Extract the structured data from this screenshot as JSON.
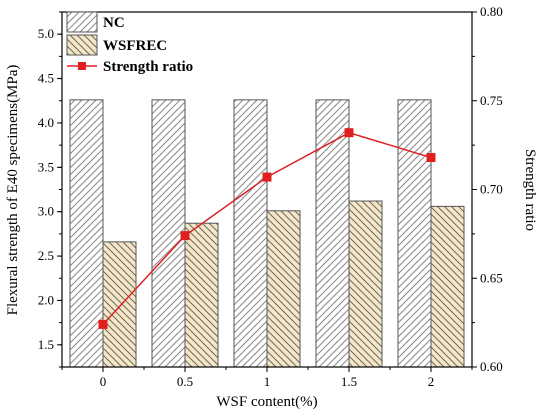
{
  "chart_data": {
    "type": "bar",
    "categories": [
      "0",
      "0.5",
      "1",
      "1.5",
      "2"
    ],
    "xlabel": "WSF content(%)",
    "ylabel": "Flexural strength of E40 specimens(MPa)",
    "y2label": "Strength ratio",
    "ylim": [
      1.25,
      5.25
    ],
    "y2lim": [
      0.6,
      0.8
    ],
    "yticks": [
      "1.5",
      "2.0",
      "2.5",
      "3.0",
      "3.5",
      "4.0",
      "4.5",
      "5.0"
    ],
    "y2ticks": [
      "0.60",
      "0.65",
      "0.70",
      "0.75",
      "0.80"
    ],
    "legend_position": "top-left",
    "series": [
      {
        "name": "NC",
        "type": "bar",
        "axis": "left",
        "values": [
          4.26,
          4.26,
          4.26,
          4.26,
          4.26
        ],
        "fill": "#ffffff",
        "hatch": "forward",
        "stroke": "#555555"
      },
      {
        "name": "WSFREC",
        "type": "bar",
        "axis": "left",
        "values": [
          2.66,
          2.87,
          3.01,
          3.12,
          3.06
        ],
        "fill": "#f5e6c4",
        "hatch": "backward",
        "stroke": "#555555"
      },
      {
        "name": "Strength ratio",
        "type": "line",
        "axis": "right",
        "values": [
          0.624,
          0.674,
          0.707,
          0.732,
          0.718
        ],
        "color": "#e02020",
        "marker": "square"
      }
    ]
  }
}
